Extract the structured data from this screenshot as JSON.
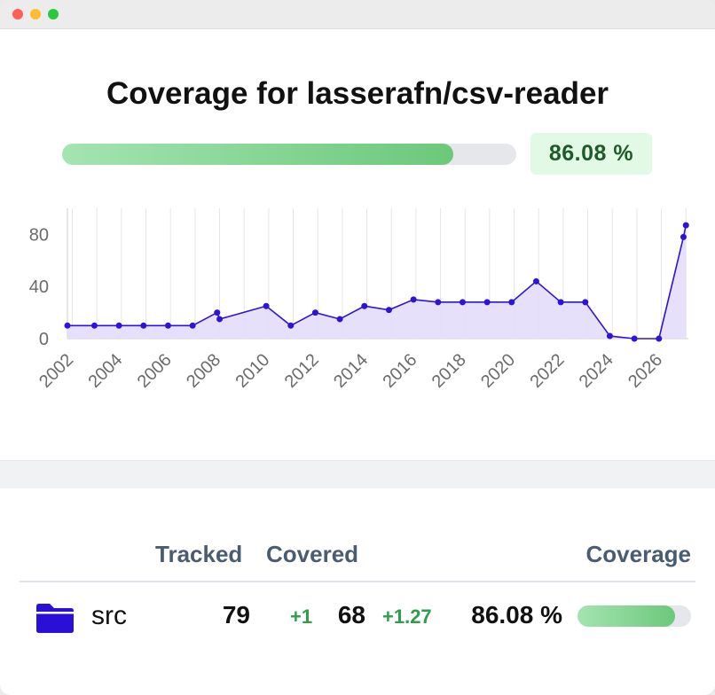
{
  "header": {
    "title": "Coverage for lasserafn/csv-reader",
    "coverage_pct": "86.08 %",
    "coverage_value": 86.08
  },
  "colors": {
    "line": "#2e14d6",
    "area": "#e3ddfb",
    "bar_fill_start": "#a4e4b1",
    "bar_fill_end": "#6cc87b",
    "delta_green": "#2e9e4a",
    "folder": "#2a0fd6"
  },
  "chart_data": {
    "type": "area",
    "title": "",
    "xlabel": "",
    "ylabel": "",
    "ylim": [
      0,
      100
    ],
    "yticks": [
      0,
      40,
      80
    ],
    "xlim": [
      2001.8,
      2027.1
    ],
    "xticks": [
      "2002",
      "2004",
      "2006",
      "2008",
      "2010",
      "2012",
      "2014",
      "2016",
      "2018",
      "2020",
      "2022",
      "2024",
      "2026"
    ],
    "grid": true,
    "series": [
      {
        "x": [
          2001.8,
          2002.9,
          2003.9,
          2004.9,
          2005.9,
          2006.9,
          2007.9,
          2008.0,
          2009.9,
          2010.9,
          2011.9,
          2012.9,
          2013.9,
          2014.9,
          2015.9,
          2016.9,
          2017.9,
          2018.9,
          2019.9,
          2020.9,
          2021.9,
          2022.9,
          2023.9,
          2024.9,
          2025.9,
          2026.9,
          2027.0
        ],
        "values": [
          10,
          10,
          10,
          10,
          10,
          10,
          20,
          15,
          25,
          10,
          20,
          15,
          25,
          22,
          30,
          28,
          28,
          28,
          28,
          44,
          28,
          28,
          2,
          0,
          0,
          78,
          87
        ]
      }
    ]
  },
  "table": {
    "headers": {
      "tracked": "Tracked",
      "covered": "Covered",
      "coverage": "Coverage"
    },
    "rows": [
      {
        "icon": "folder-icon",
        "name": "src",
        "tracked": "79",
        "covered_delta": "+1",
        "covered": "68",
        "coverage_delta": "+1.27",
        "coverage": "86.08 %",
        "coverage_value": 86.08
      }
    ]
  }
}
